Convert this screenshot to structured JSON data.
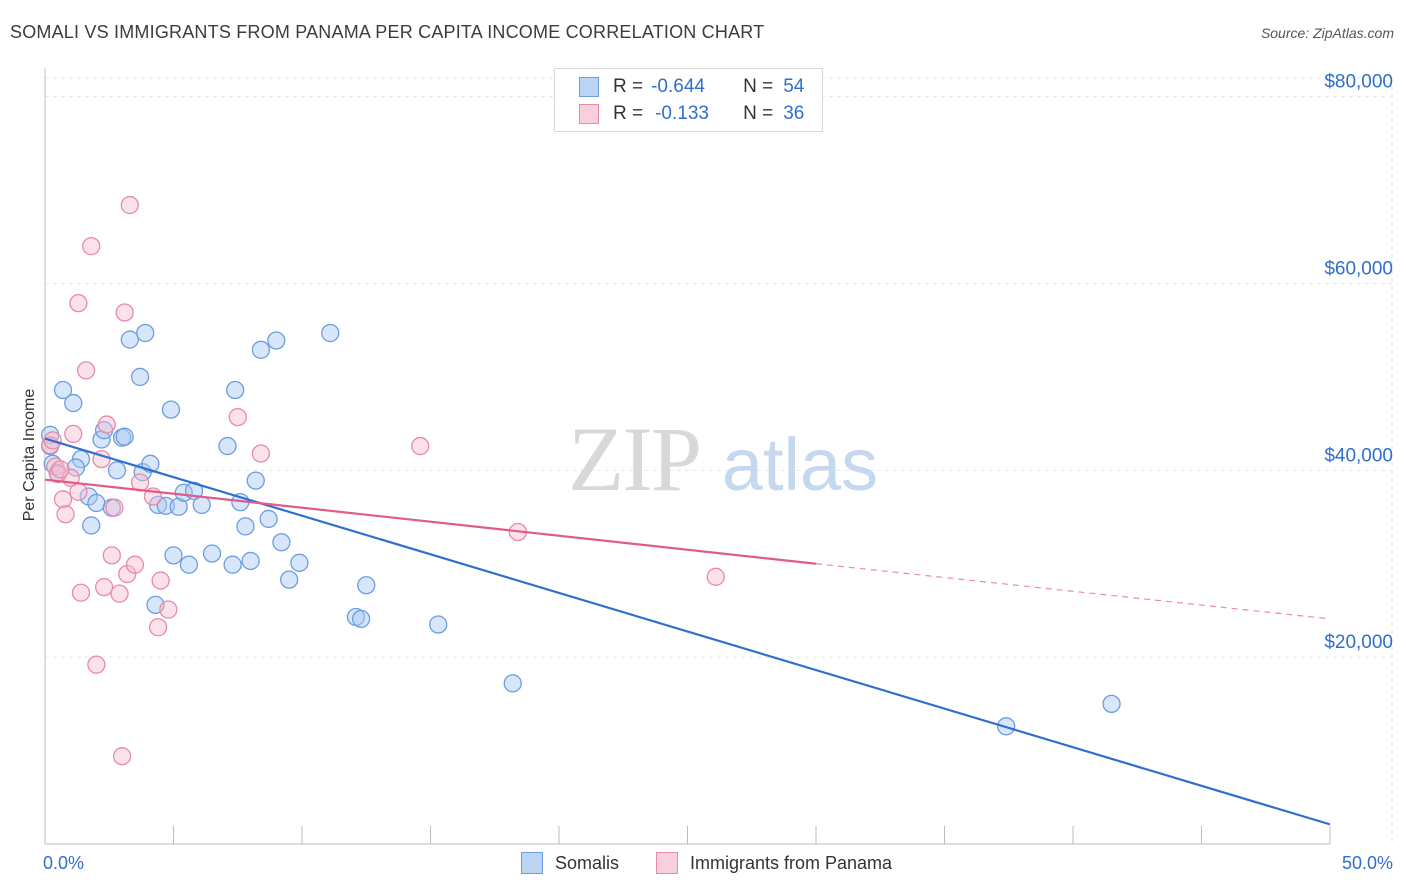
{
  "title": "SOMALI VS IMMIGRANTS FROM PANAMA PER CAPITA INCOME CORRELATION CHART",
  "source": "Source: ZipAtlas.com",
  "watermark": {
    "zip": "ZIP",
    "atlas": "atlas"
  },
  "legend": {
    "rows": [
      {
        "r_label": "R =",
        "r_value": "-0.644",
        "n_label": "N =",
        "n_value": "54"
      },
      {
        "r_label": "R =",
        "r_value": "-0.133",
        "n_label": "N =",
        "n_value": "36"
      }
    ]
  },
  "colors": {
    "somali_fill": "#a9c8f2",
    "somali_stroke": "#6b9ee0",
    "somali_line": "#2e6fd0",
    "panama_fill": "#f6bdd0",
    "panama_stroke": "#e88aa8",
    "panama_line": "#e05a8a",
    "axis_text": "#2f6fc9",
    "grid": "#e6e6e6"
  },
  "chart_data": {
    "type": "scatter",
    "title": "SOMALI VS IMMIGRANTS FROM PANAMA PER CAPITA INCOME CORRELATION CHART",
    "xlabel": "",
    "ylabel": "Per Capita Income",
    "x_tick_labels": [
      "0.0%",
      "50.0%"
    ],
    "y_tick_labels": [
      "$20,000",
      "$40,000",
      "$60,000",
      "$80,000"
    ],
    "y_ticks": [
      20000,
      40000,
      60000,
      80000
    ],
    "xlim": [
      0,
      50
    ],
    "ylim": [
      0,
      82000
    ],
    "grid": true,
    "legend_position": "top-center",
    "series": [
      {
        "name": "Somalis",
        "points": [
          [
            0.2,
            43800
          ],
          [
            0.2,
            42600
          ],
          [
            0.7,
            48600
          ],
          [
            1.1,
            47200
          ],
          [
            1.4,
            41200
          ],
          [
            1.7,
            37200
          ],
          [
            1.8,
            34100
          ],
          [
            2.0,
            36500
          ],
          [
            2.2,
            43300
          ],
          [
            2.3,
            44300
          ],
          [
            2.6,
            36000
          ],
          [
            2.8,
            40000
          ],
          [
            3.0,
            43500
          ],
          [
            3.1,
            43600
          ],
          [
            3.3,
            54000
          ],
          [
            3.7,
            50000
          ],
          [
            3.8,
            39800
          ],
          [
            3.9,
            54700
          ],
          [
            4.1,
            40700
          ],
          [
            4.3,
            25600
          ],
          [
            4.4,
            36300
          ],
          [
            4.7,
            36200
          ],
          [
            4.9,
            46500
          ],
          [
            5.0,
            30900
          ],
          [
            5.2,
            36100
          ],
          [
            5.4,
            37600
          ],
          [
            5.6,
            29900
          ],
          [
            5.8,
            37800
          ],
          [
            6.1,
            36300
          ],
          [
            6.5,
            31100
          ],
          [
            7.1,
            42600
          ],
          [
            7.3,
            29900
          ],
          [
            7.4,
            48600
          ],
          [
            7.6,
            36600
          ],
          [
            7.8,
            34000
          ],
          [
            8.0,
            30300
          ],
          [
            8.2,
            38900
          ],
          [
            8.4,
            52900
          ],
          [
            8.7,
            34800
          ],
          [
            9.0,
            53900
          ],
          [
            9.2,
            32300
          ],
          [
            9.5,
            28300
          ],
          [
            9.9,
            30100
          ],
          [
            11.1,
            54700
          ],
          [
            12.1,
            24300
          ],
          [
            12.3,
            24100
          ],
          [
            12.5,
            27700
          ],
          [
            15.3,
            23500
          ],
          [
            18.2,
            17200
          ],
          [
            37.4,
            12600
          ],
          [
            41.5,
            15000
          ],
          [
            0.3,
            40700
          ],
          [
            1.2,
            40300
          ],
          [
            0.5,
            39700
          ]
        ]
      },
      {
        "name": "Immigrants from Panama",
        "points": [
          [
            0.2,
            42700
          ],
          [
            0.3,
            43200
          ],
          [
            0.4,
            40400
          ],
          [
            0.5,
            39600
          ],
          [
            0.7,
            36900
          ],
          [
            0.8,
            35300
          ],
          [
            1.0,
            39200
          ],
          [
            1.1,
            43900
          ],
          [
            1.3,
            37700
          ],
          [
            1.4,
            26900
          ],
          [
            1.6,
            50700
          ],
          [
            1.8,
            64000
          ],
          [
            1.3,
            57900
          ],
          [
            2.0,
            19200
          ],
          [
            2.2,
            41200
          ],
          [
            2.3,
            27500
          ],
          [
            2.4,
            44900
          ],
          [
            2.6,
            30900
          ],
          [
            2.7,
            36000
          ],
          [
            2.9,
            26800
          ],
          [
            3.0,
            9400
          ],
          [
            3.1,
            56900
          ],
          [
            3.2,
            28900
          ],
          [
            3.3,
            68400
          ],
          [
            3.5,
            29900
          ],
          [
            3.7,
            38700
          ],
          [
            4.2,
            37200
          ],
          [
            4.4,
            23200
          ],
          [
            4.5,
            28200
          ],
          [
            4.8,
            25100
          ],
          [
            7.5,
            45700
          ],
          [
            8.4,
            41800
          ],
          [
            14.6,
            42600
          ],
          [
            18.4,
            33400
          ],
          [
            26.1,
            28600
          ],
          [
            0.6,
            40100
          ]
        ]
      }
    ],
    "trend_lines": [
      {
        "series": "Somalis",
        "x": [
          0,
          50
        ],
        "y": [
          43400,
          2100
        ]
      },
      {
        "series": "Immigrants from Panama",
        "x": [
          0,
          30,
          50
        ],
        "y": [
          39000,
          30000,
          24100
        ]
      }
    ]
  },
  "bottom_legend": [
    {
      "label": "Somalis"
    },
    {
      "label": "Immigrants from Panama"
    }
  ]
}
